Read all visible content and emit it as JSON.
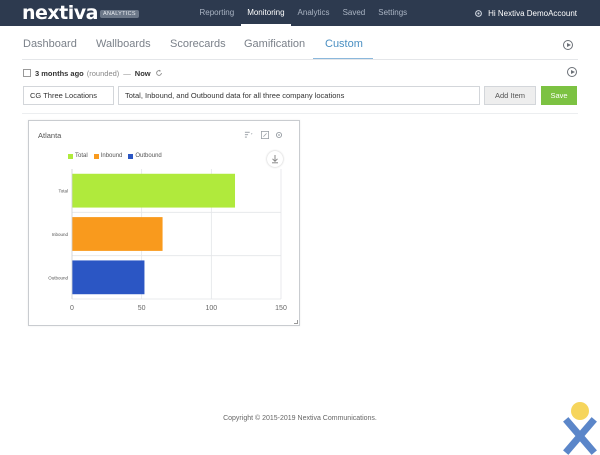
{
  "brand": {
    "logo": "nextiva",
    "badge": "ANALYTICS"
  },
  "topnav": {
    "items": [
      {
        "label": "Reporting",
        "active": false
      },
      {
        "label": "Monitoring",
        "active": true
      },
      {
        "label": "Analytics",
        "active": false
      },
      {
        "label": "Saved",
        "active": false
      },
      {
        "label": "Settings",
        "active": false
      }
    ],
    "user_greeting": "Hi Nextiva DemoAccount"
  },
  "subtabs": [
    {
      "label": "Dashboard"
    },
    {
      "label": "Wallboards"
    },
    {
      "label": "Scorecards"
    },
    {
      "label": "Gamification"
    },
    {
      "label": "Custom",
      "active": true
    }
  ],
  "timerange": {
    "value": "3 months ago",
    "qualifier": "(rounded)",
    "separator": "—",
    "end": "Now"
  },
  "form": {
    "name_value": "CG Three Locations",
    "description_value": "Total, Inbound, and Outbound data for all three company locations",
    "add_item_label": "Add Item",
    "save_label": "Save"
  },
  "widget": {
    "title": "Atlanta"
  },
  "chart_data": {
    "type": "bar",
    "orientation": "horizontal",
    "categories": [
      "Total",
      "Inbound",
      "Outbound"
    ],
    "values": [
      117,
      65,
      52
    ],
    "colors": [
      "#b0ea3c",
      "#f99a1d",
      "#2b56c4"
    ],
    "legend": [
      "Total",
      "Inbound",
      "Outbound"
    ],
    "legend_position": "top-left",
    "xlim": [
      0,
      150
    ],
    "xticks": [
      0,
      50,
      100,
      150
    ],
    "grid": true,
    "title": "",
    "xlabel": "",
    "ylabel": ""
  },
  "footer": {
    "text": "Copyright © 2015-2019 Nextiva Communications."
  },
  "colors": {
    "nav_bg": "#2d3a4f",
    "accent_blue": "#4a8fc2",
    "save_green": "#7cc242"
  }
}
